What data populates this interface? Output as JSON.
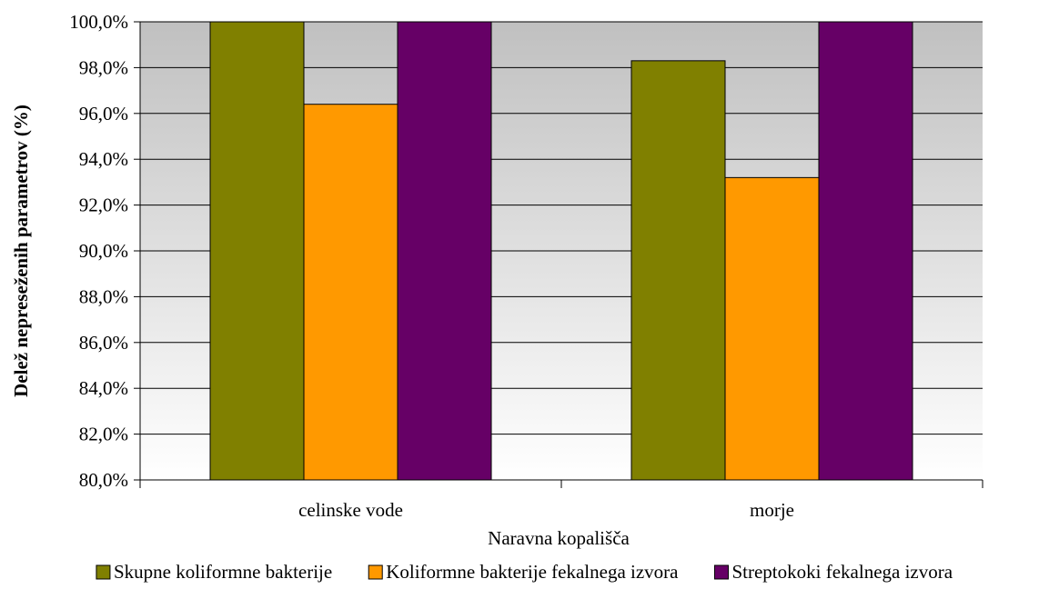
{
  "chart_data": {
    "type": "bar",
    "title": "",
    "xlabel": "Naravna kopališča",
    "ylabel": "Delež nepreseženih parametrov (%)",
    "ylim": [
      80,
      100
    ],
    "ytick_step": 2,
    "ytick_labels": [
      "80,0%",
      "82,0%",
      "84,0%",
      "86,0%",
      "88,0%",
      "90,0%",
      "92,0%",
      "94,0%",
      "96,0%",
      "98,0%",
      "100,0%"
    ],
    "categories": [
      "celinske vode",
      "morje"
    ],
    "series": [
      {
        "name": "Skupne koliformne bakterije",
        "values": [
          100.0,
          98.3
        ],
        "color": "#808000"
      },
      {
        "name": "Koliformne bakterije fekalnega izvora",
        "values": [
          96.4,
          93.2
        ],
        "color": "#FF9900"
      },
      {
        "name": "Streptokoki fekalnega izvora",
        "values": [
          100.0,
          100.0
        ],
        "color": "#660066"
      }
    ],
    "grid": true,
    "legend_position": "bottom",
    "plot_background": "gradient grey to white"
  }
}
